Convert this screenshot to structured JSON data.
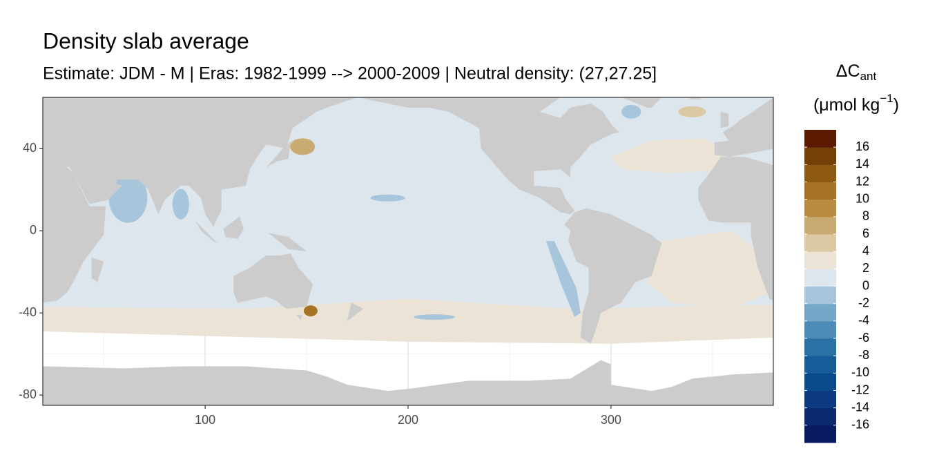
{
  "chart_data": {
    "type": "map",
    "title": "Density slab average",
    "subtitle": "Estimate: JDM - M | Eras: 1982-1999 --> 2000-2009 | Neutral density: (27,27.25]",
    "xlim": [
      20,
      380
    ],
    "ylim": [
      -85,
      65
    ],
    "xticks": [
      100,
      200,
      300
    ],
    "yticks": [
      40,
      0,
      -40,
      -80
    ],
    "xminor": [
      50,
      150,
      250,
      350
    ],
    "yminor": [
      60,
      20,
      -20,
      -60
    ],
    "grid": true,
    "legend": {
      "symbol": "ΔC",
      "subscript": "ant",
      "unit": "(μmol kg",
      "exponent": "−1",
      "unit_close": ")",
      "breaks": [
        -18,
        -16,
        -14,
        -12,
        -10,
        -8,
        -6,
        -4,
        -2,
        0,
        2,
        4,
        6,
        8,
        10,
        12,
        14,
        16,
        18
      ],
      "ticks": [
        -16,
        -14,
        -12,
        -10,
        -8,
        -6,
        -4,
        -2,
        0,
        2,
        4,
        6,
        8,
        10,
        12,
        14,
        16
      ],
      "colors": [
        "#081b5e",
        "#0c2a70",
        "#0b3a80",
        "#0a4b8c",
        "#155c99",
        "#2a72a6",
        "#4c8bb7",
        "#75a7c8",
        "#a7c6dc",
        "#dde6ed",
        "#ebe3d5",
        "#dcc8a2",
        "#c9aa70",
        "#b98b40",
        "#a77324",
        "#8e5a11",
        "#753f08",
        "#5c1a02"
      ]
    }
  }
}
